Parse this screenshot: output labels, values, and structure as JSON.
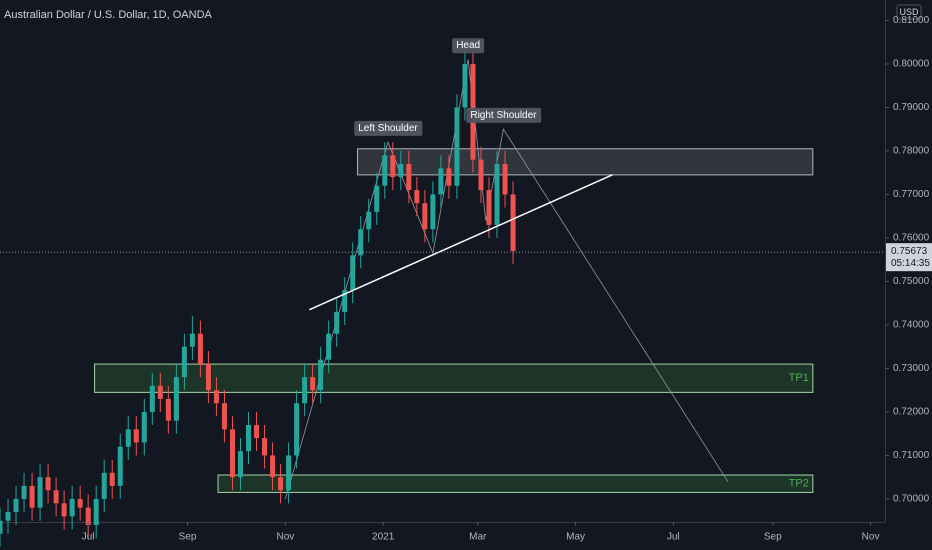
{
  "chart_data": {
    "type": "candlestick",
    "title": "Australian Dollar / U.S. Dollar, 1D, OANDA",
    "axis_unit": "USD",
    "x": [
      -55,
      -50,
      -45,
      -40,
      -35,
      -30,
      -25,
      -20,
      -15,
      -10,
      -5,
      0,
      5,
      10,
      15,
      20,
      25,
      30,
      35,
      40,
      45,
      50,
      55,
      60,
      65,
      70,
      75,
      80,
      85,
      90,
      95,
      100,
      105,
      110,
      115,
      120,
      125,
      130,
      135,
      140,
      145,
      150,
      155,
      160,
      165,
      170,
      175,
      180,
      185,
      190,
      195,
      200,
      205,
      210,
      215,
      220,
      225,
      230,
      235,
      240,
      245,
      250,
      255,
      260,
      265
    ],
    "open": [
      0.692,
      0.695,
      0.697,
      0.7,
      0.703,
      0.698,
      0.705,
      0.702,
      0.699,
      0.696,
      0.7,
      0.698,
      0.694,
      0.7,
      0.706,
      0.703,
      0.712,
      0.716,
      0.713,
      0.72,
      0.726,
      0.723,
      0.718,
      0.728,
      0.735,
      0.738,
      0.731,
      0.725,
      0.722,
      0.716,
      0.705,
      0.711,
      0.717,
      0.714,
      0.71,
      0.705,
      0.702,
      0.71,
      0.722,
      0.728,
      0.725,
      0.732,
      0.738,
      0.743,
      0.748,
      0.756,
      0.762,
      0.766,
      0.772,
      0.779,
      0.774,
      0.777,
      0.771,
      0.768,
      0.762,
      0.77,
      0.776,
      0.772,
      0.79,
      0.8,
      0.778,
      0.771,
      0.763,
      0.777,
      0.77
    ],
    "high": [
      0.698,
      0.7,
      0.703,
      0.706,
      0.706,
      0.708,
      0.708,
      0.705,
      0.702,
      0.703,
      0.703,
      0.701,
      0.703,
      0.709,
      0.709,
      0.715,
      0.719,
      0.719,
      0.723,
      0.729,
      0.729,
      0.726,
      0.731,
      0.738,
      0.742,
      0.741,
      0.734,
      0.728,
      0.725,
      0.719,
      0.714,
      0.72,
      0.72,
      0.717,
      0.713,
      0.708,
      0.713,
      0.725,
      0.731,
      0.731,
      0.735,
      0.741,
      0.746,
      0.751,
      0.759,
      0.765,
      0.769,
      0.775,
      0.782,
      0.782,
      0.78,
      0.78,
      0.774,
      0.771,
      0.773,
      0.779,
      0.779,
      0.793,
      0.803,
      0.803,
      0.781,
      0.774,
      0.78,
      0.78,
      0.773
    ],
    "low": [
      0.689,
      0.692,
      0.694,
      0.697,
      0.695,
      0.695,
      0.699,
      0.696,
      0.693,
      0.693,
      0.695,
      0.691,
      0.691,
      0.697,
      0.7,
      0.7,
      0.709,
      0.71,
      0.71,
      0.717,
      0.72,
      0.715,
      0.715,
      0.725,
      0.732,
      0.728,
      0.722,
      0.719,
      0.713,
      0.702,
      0.702,
      0.708,
      0.711,
      0.707,
      0.702,
      0.699,
      0.699,
      0.707,
      0.719,
      0.722,
      0.722,
      0.729,
      0.735,
      0.74,
      0.745,
      0.753,
      0.759,
      0.763,
      0.769,
      0.771,
      0.771,
      0.768,
      0.765,
      0.759,
      0.759,
      0.767,
      0.769,
      0.769,
      0.787,
      0.775,
      0.768,
      0.76,
      0.76,
      0.767,
      0.754
    ],
    "close": [
      0.695,
      0.697,
      0.7,
      0.703,
      0.698,
      0.705,
      0.702,
      0.699,
      0.696,
      0.7,
      0.698,
      0.694,
      0.7,
      0.706,
      0.703,
      0.712,
      0.716,
      0.713,
      0.72,
      0.726,
      0.723,
      0.718,
      0.728,
      0.735,
      0.738,
      0.731,
      0.725,
      0.722,
      0.716,
      0.705,
      0.711,
      0.717,
      0.714,
      0.71,
      0.705,
      0.702,
      0.71,
      0.722,
      0.728,
      0.725,
      0.732,
      0.738,
      0.743,
      0.748,
      0.756,
      0.762,
      0.766,
      0.772,
      0.779,
      0.774,
      0.777,
      0.771,
      0.768,
      0.762,
      0.77,
      0.776,
      0.772,
      0.79,
      0.8,
      0.778,
      0.771,
      0.763,
      0.777,
      0.77,
      0.757
    ],
    "up_color": "#26a69a",
    "down_color": "#ef5350",
    "xlim": [
      -55,
      497
    ],
    "xticks": [
      {
        "value": 0,
        "label": "Jul"
      },
      {
        "value": 62,
        "label": "Sep"
      },
      {
        "value": 123,
        "label": "Nov"
      },
      {
        "value": 184,
        "label": "2021"
      },
      {
        "value": 243,
        "label": "Mar"
      },
      {
        "value": 304,
        "label": "May"
      },
      {
        "value": 365,
        "label": "Jul"
      },
      {
        "value": 427,
        "label": "Sep"
      },
      {
        "value": 488,
        "label": "Nov"
      }
    ],
    "ylim": [
      0.6947,
      0.8147
    ],
    "yticks": [
      {
        "value": 0.7,
        "label": "0.70000"
      },
      {
        "value": 0.71,
        "label": "0.71000"
      },
      {
        "value": 0.72,
        "label": "0.72000"
      },
      {
        "value": 0.73,
        "label": "0.73000"
      },
      {
        "value": 0.74,
        "label": "0.74000"
      },
      {
        "value": 0.75,
        "label": "0.75000"
      },
      {
        "value": 0.76,
        "label": "0.76000"
      },
      {
        "value": 0.77,
        "label": "0.77000"
      },
      {
        "value": 0.78,
        "label": "0.78000"
      },
      {
        "value": 0.79,
        "label": "0.79000"
      },
      {
        "value": 0.8,
        "label": "0.80000"
      },
      {
        "value": 0.81,
        "label": "0.81000"
      }
    ],
    "last_price": 0.75673,
    "countdown": "05:14:35",
    "zones": [
      {
        "x": [
          168,
          452
        ],
        "y": [
          0.7745,
          0.7805
        ]
      },
      {
        "label": "TP1",
        "x": [
          4,
          452
        ],
        "y": [
          0.7245,
          0.731
        ]
      },
      {
        "label": "TP2",
        "x": [
          81,
          452
        ],
        "y": [
          0.7015,
          0.7055
        ]
      }
    ],
    "neckline": {
      "x": [
        138,
        327
      ],
      "y": [
        0.7435,
        0.7745
      ]
    },
    "pattern": {
      "x": [
        123,
        187,
        215,
        237,
        248,
        259,
        399
      ],
      "y": [
        0.7,
        0.782,
        0.7565,
        0.801,
        0.764,
        0.785,
        0.704
      ]
    },
    "labels": [
      "Left Shoulder",
      "Head",
      "Right Shoulder"
    ]
  }
}
